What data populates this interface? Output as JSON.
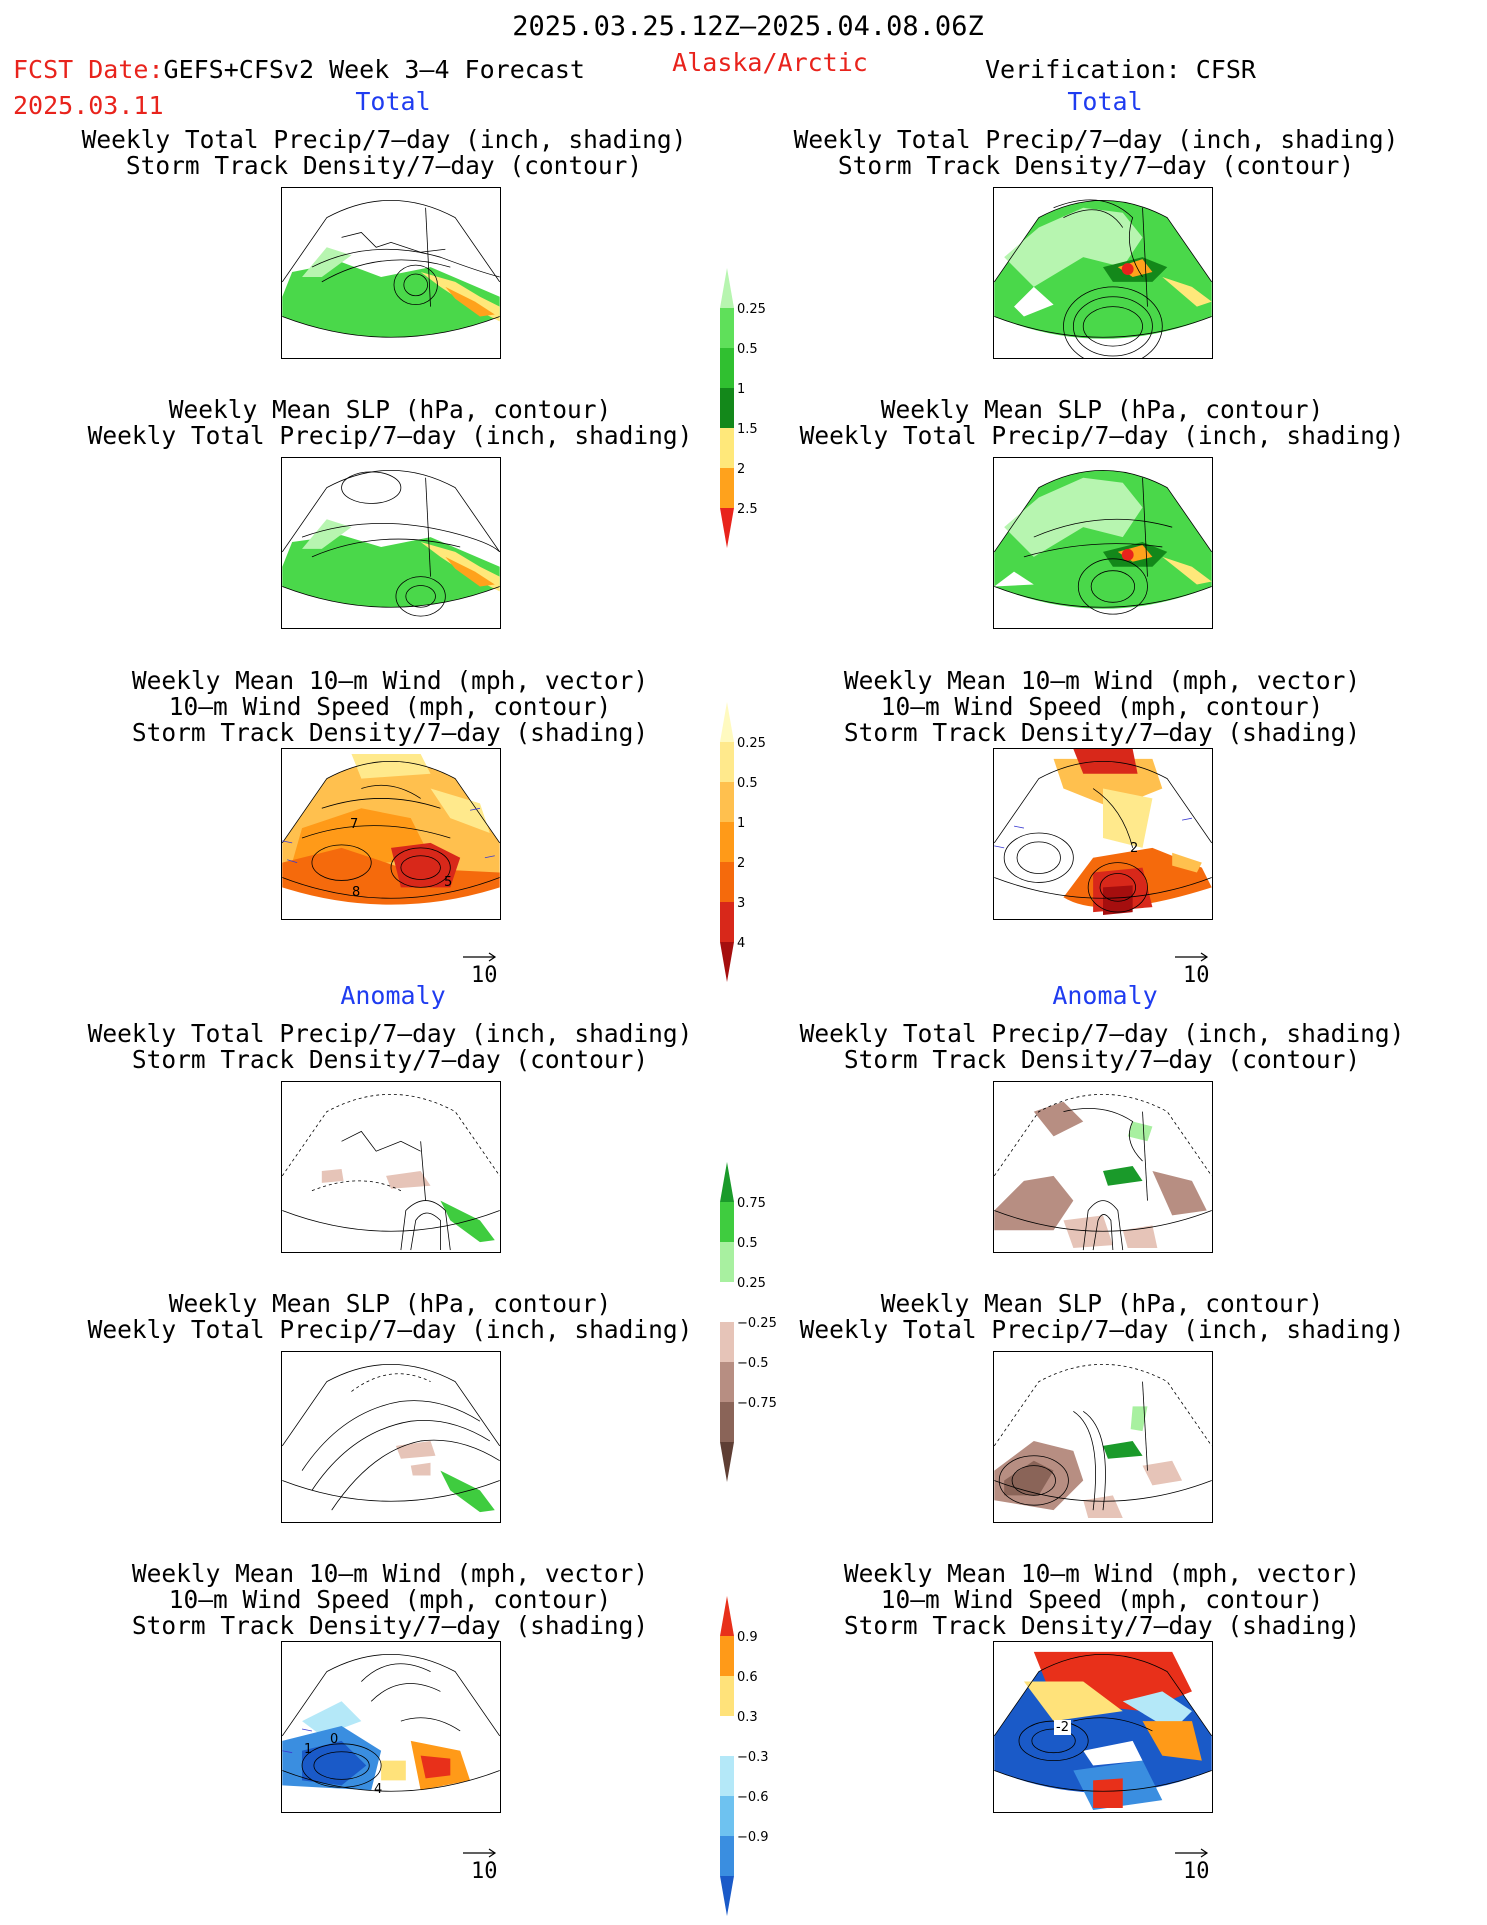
{
  "header": {
    "date_range": "2025.03.25.12Z–2025.04.08.06Z",
    "fcst_label": "FCST Date:",
    "model": "GEFS+CFSv2 Week 3–4 Forecast",
    "region": "Alaska/Arctic",
    "fcst_date": "2025.03.11",
    "verification": "Verification: CFSR"
  },
  "sections": {
    "total_left": "Total",
    "total_right": "Total",
    "anomaly_left": "Anomaly",
    "anomaly_right": "Anomaly"
  },
  "panel_titles": {
    "precip_storm": [
      "Weekly Total Precip/7–day (inch, shading)",
      "Storm Track Density/7–day (contour)"
    ],
    "slp_precip": [
      "Weekly Mean SLP (hPa, contour)",
      "Weekly Total Precip/7–day (inch, shading)"
    ],
    "wind": [
      "Weekly Mean 10–m Wind (mph, vector)",
      "10–m Wind Speed (mph, contour)",
      "Storm Track Density/7–day (shading)"
    ]
  },
  "vector_scale": "10",
  "chart_data": [
    {
      "type": "heatmap",
      "name": "precip_total_colorbar",
      "levels": [
        "0.25",
        "0.5",
        "1",
        "1.5",
        "2",
        "2.5"
      ],
      "colors": [
        "#b7f5b0",
        "#5fe05a",
        "#30c030",
        "#13881a",
        "#ffe87a",
        "#ffa21c",
        "#e8231c"
      ]
    },
    {
      "type": "heatmap",
      "name": "storm_total_colorbar",
      "levels": [
        "0.25",
        "0.5",
        "1",
        "2",
        "3",
        "4"
      ],
      "colors": [
        "#fffac0",
        "#ffe98c",
        "#ffc04e",
        "#ff9a18",
        "#f56a0c",
        "#d8281a",
        "#a50e0e"
      ]
    },
    {
      "type": "heatmap",
      "name": "precip_anomaly_colorbar",
      "levels": [
        "0.75",
        "0.5",
        "0.25",
        "−0.25",
        "−0.5",
        "−0.75"
      ],
      "colors": [
        "#1a9a2a",
        "#3fcc3f",
        "#a8f0a0",
        "#ffffff",
        "#e6c4b8",
        "#b78e82",
        "#8a6458",
        "#5e3e34"
      ]
    },
    {
      "type": "heatmap",
      "name": "storm_anomaly_colorbar",
      "levels": [
        "0.9",
        "0.6",
        "0.3",
        "−0.3",
        "−0.6",
        "−0.9"
      ],
      "colors": [
        "#e8301a",
        "#ff9a18",
        "#ffe27a",
        "#ffffff",
        "#b4e8f8",
        "#6ec2f0",
        "#3a8ee0",
        "#1a5ac8"
      ]
    }
  ],
  "map_labels": {
    "wind_total_left": [
      "7",
      "8",
      "5"
    ],
    "wind_total_right": [
      "2"
    ],
    "wind_anom_left": [
      "1",
      "0",
      "4"
    ],
    "wind_anom_right": [
      "-2"
    ]
  },
  "colors": {
    "red": "#e8231c",
    "blue": "#1f3cf0"
  }
}
